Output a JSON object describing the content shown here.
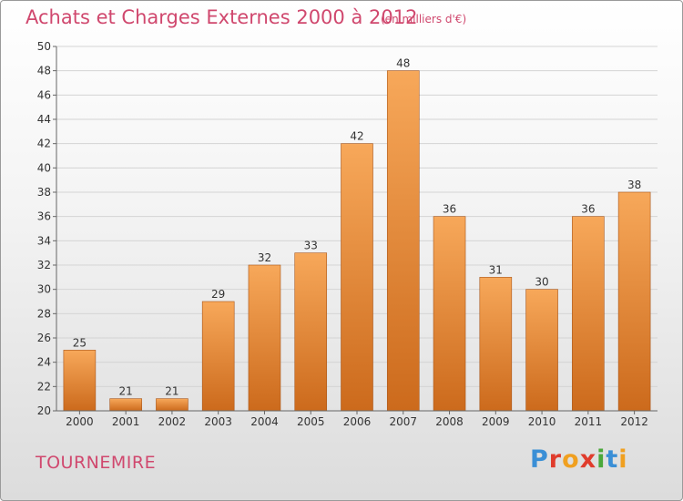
{
  "header": {
    "title": "Achats et Charges Externes 2000 à 2012",
    "unit_note": "(en milliers d'€)"
  },
  "footer": {
    "place": "TOURNEMIRE",
    "logo": {
      "text": "Proxiti",
      "letter_colors": [
        "#3a8fd6",
        "#e03c2c",
        "#f0a020",
        "#e03c2c",
        "#4aa83a",
        "#3a8fd6",
        "#f0a020"
      ]
    }
  },
  "colors": {
    "bar_top": "#f7a85a",
    "bar_bottom": "#cc6a1c",
    "bar_edge": "#a9561a",
    "grid": "#d4d4d4",
    "axis": "#666666",
    "text": "#333333",
    "accent": "#d0486e"
  },
  "chart_data": {
    "type": "bar",
    "title": "Achats et Charges Externes 2000 à 2012",
    "xlabel": "",
    "ylabel": "",
    "categories": [
      "2000",
      "2001",
      "2002",
      "2003",
      "2004",
      "2005",
      "2006",
      "2007",
      "2008",
      "2009",
      "2010",
      "2011",
      "2012"
    ],
    "values": [
      25,
      21,
      21,
      29,
      32,
      33,
      42,
      48,
      36,
      31,
      30,
      36,
      38
    ],
    "ylim": [
      20,
      50
    ],
    "yticks": [
      20,
      22,
      24,
      26,
      28,
      30,
      32,
      34,
      36,
      38,
      40,
      42,
      44,
      46,
      48,
      50
    ],
    "grid": true,
    "legend": "none"
  }
}
